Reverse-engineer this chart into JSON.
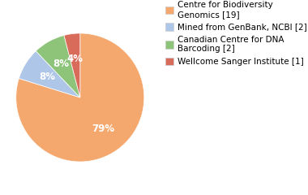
{
  "labels": [
    "Centre for Biodiversity\nGenomics [19]",
    "Mined from GenBank, NCBI [2]",
    "Canadian Centre for DNA\nBarcoding [2]",
    "Wellcome Sanger Institute [1]"
  ],
  "values": [
    79,
    8,
    8,
    4
  ],
  "colors": [
    "#F5A86E",
    "#AEC6E8",
    "#8DC47A",
    "#D96B5A"
  ],
  "autopct_labels": [
    "79%",
    "8%",
    "8%",
    "4%"
  ],
  "background_color": "#ffffff",
  "legend_fontsize": 7.5,
  "autopct_fontsize": 8.5
}
